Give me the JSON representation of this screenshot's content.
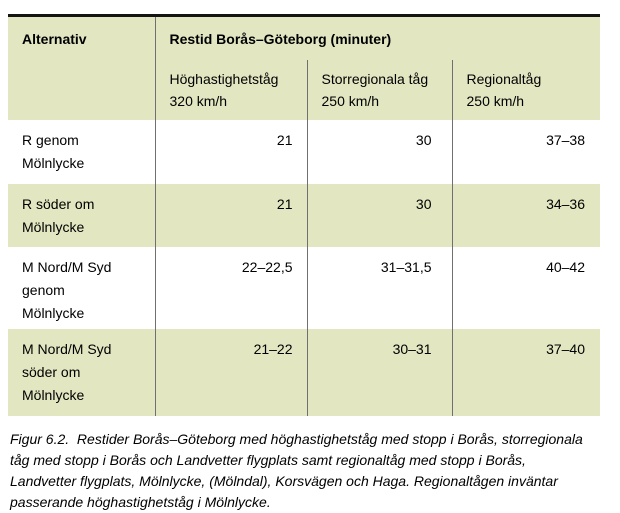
{
  "figure": {
    "table": {
      "corner_header": "Alternativ",
      "group_header": "Restid Borås–Göteborg (minuter)",
      "sub_headers": [
        "Höghastighetståg\n320 km/h",
        "Storregionala tåg\n250 km/h",
        "Regionaltåg\n250 km/h"
      ],
      "rows": [
        {
          "label": "R genom\nMölnlycke",
          "values": [
            "21",
            "30",
            "37–38"
          ]
        },
        {
          "label": "R söder om\nMölnlycke",
          "values": [
            "21",
            "30",
            "34–36"
          ]
        },
        {
          "label": "M Nord/M Syd\ngenom\nMölnlycke",
          "values": [
            "22–22,5",
            "31–31,5",
            "40–42"
          ]
        },
        {
          "label": "M Nord/M Syd\nsöder om\nMölnlycke",
          "values": [
            "21–22",
            "30–31",
            "37–40"
          ]
        }
      ]
    },
    "caption": "Figur 6.2.  Restider Borås–Göteborg med höghastighetståg med stopp i Borås, storregionala\ntåg med stopp i Borås och Landvetter flygplats samt regionaltåg med stopp i Borås,\nLandvetter flygplats, Mölnlycke, (Mölndal), Korsvägen och Haga. Regionaltågen inväntar\npasserande höghastighetståg i Mölnlycke."
  },
  "colors": {
    "row_highlight": "#e2e6c1",
    "top_border": "#141414",
    "column_divider": "#707070",
    "text": "#000000"
  },
  "chart_data": {
    "type": "table",
    "title": "Restid Borås–Göteborg (minuter)",
    "row_header": "Alternativ",
    "columns": [
      "Höghastighetståg 320 km/h",
      "Storregionala tåg 250 km/h",
      "Regionaltåg 250 km/h"
    ],
    "rows": [
      {
        "alternativ": "R genom Mölnlycke",
        "values": [
          "21",
          "30",
          "37–38"
        ]
      },
      {
        "alternativ": "R söder om Mölnlycke",
        "values": [
          "21",
          "30",
          "34–36"
        ]
      },
      {
        "alternativ": "M Nord/M Syd genom Mölnlycke",
        "values": [
          "22–22,5",
          "31–31,5",
          "40–42"
        ]
      },
      {
        "alternativ": "M Nord/M Syd söder om Mölnlycke",
        "values": [
          "21–22",
          "30–31",
          "37–40"
        ]
      }
    ]
  }
}
